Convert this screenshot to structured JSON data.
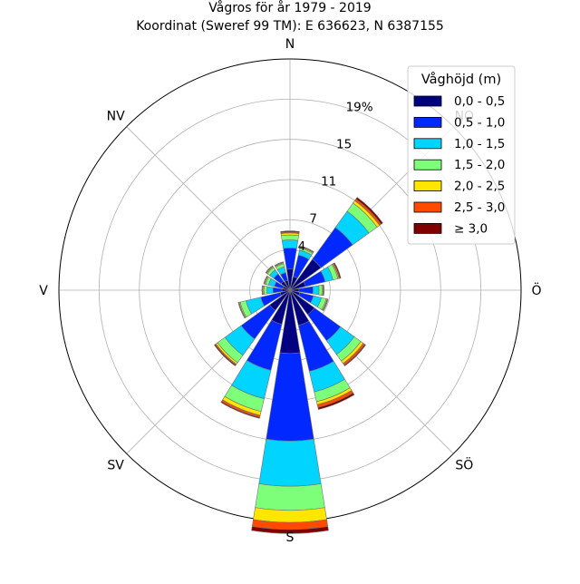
{
  "chart_data": {
    "type": "windrose",
    "title": "Vågros för år 1979 - 2019",
    "subtitle": "Koordinat (Sweref 99 TM): E 636623, N 6387155",
    "directions": [
      "N",
      "NO",
      "Ö",
      "SÖ",
      "S",
      "SV",
      "V",
      "NV"
    ],
    "sectors": [
      {
        "angle": 0,
        "totals": [
          2.1,
          4.2,
          5.0,
          5.5,
          5.7,
          5.8,
          5.9
        ]
      },
      {
        "angle": 22.5,
        "totals": [
          1.4,
          3.6,
          4.1,
          4.3,
          4.4,
          4.45,
          4.5
        ]
      },
      {
        "angle": 45,
        "totals": [
          3.8,
          7.7,
          9.7,
          10.7,
          11.0,
          11.2,
          11.4
        ]
      },
      {
        "angle": 67.5,
        "totals": [
          1.6,
          3.6,
          4.4,
          4.9,
          5.0,
          5.1,
          5.2
        ]
      },
      {
        "angle": 90,
        "totals": [
          0.9,
          2.3,
          2.9,
          3.2,
          3.3,
          3.35,
          3.4
        ]
      },
      {
        "angle": 112.5,
        "totals": [
          1.0,
          2.4,
          3.2,
          3.7,
          3.8,
          3.85,
          3.9
        ]
      },
      {
        "angle": 135,
        "totals": [
          3.0,
          6.2,
          7.9,
          8.7,
          9.0,
          9.2,
          9.3
        ]
      },
      {
        "angle": 157.5,
        "totals": [
          3.6,
          8.3,
          10.4,
          11.4,
          11.7,
          12.0,
          12.2
        ]
      },
      {
        "angle": 180,
        "totals": [
          6.3,
          15.0,
          19.5,
          21.9,
          23.1,
          23.8,
          24.2
        ]
      },
      {
        "angle": 202.5,
        "totals": [
          3.5,
          8.2,
          11.1,
          12.4,
          12.8,
          13.0,
          13.1
        ]
      },
      {
        "angle": 225,
        "totals": [
          2.5,
          6.0,
          8.0,
          8.9,
          9.1,
          9.2,
          9.3
        ]
      },
      {
        "angle": 247.5,
        "totals": [
          1.0,
          3.0,
          4.5,
          5.1,
          5.2,
          5.25,
          5.3
        ]
      },
      {
        "angle": 270,
        "totals": [
          0.8,
          1.7,
          2.3,
          2.6,
          2.7,
          2.75,
          2.8
        ]
      },
      {
        "angle": 292.5,
        "totals": [
          0.7,
          1.6,
          2.2,
          2.5,
          2.6,
          2.65,
          2.7
        ]
      },
      {
        "angle": 315,
        "totals": [
          1.1,
          2.0,
          2.5,
          2.8,
          2.9,
          2.95,
          3.0
        ]
      },
      {
        "angle": 337.5,
        "totals": [
          1.0,
          1.8,
          2.4,
          2.7,
          2.8,
          2.85,
          2.9
        ]
      }
    ],
    "radial_ticks": [
      4,
      7,
      11,
      15,
      19
    ],
    "radial_tick_labels": [
      "4",
      "7",
      "11",
      "15",
      "19%"
    ],
    "rmax": 23,
    "grid": true,
    "legend": {
      "title": "Våghöjd (m)",
      "placement": "top-right",
      "entries": [
        {
          "label": "0,0 - 0,5",
          "color": "#000080"
        },
        {
          "label": "0,5 - 1,0",
          "color": "#0028ff"
        },
        {
          "label": "1,0 - 1,5",
          "color": "#00d4ff"
        },
        {
          "label": "1,5 - 2,0",
          "color": "#7dff7a"
        },
        {
          "label": "2,0 - 2,5",
          "color": "#ffe600"
        },
        {
          "label": "2,5 - 3,0",
          "color": "#ff4a00"
        },
        {
          "label": "≥ 3,0",
          "color": "#800000"
        }
      ]
    }
  }
}
